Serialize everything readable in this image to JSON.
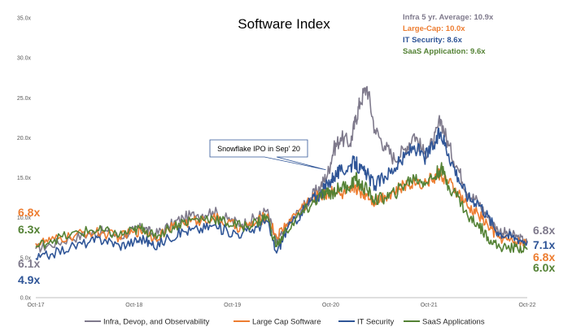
{
  "chart_data": {
    "type": "line",
    "title": "Software Index",
    "x_ticks": [
      "Oct-17",
      "Oct-18",
      "Oct-19",
      "Oct-20",
      "Oct-21",
      "Oct-22"
    ],
    "y_ticks": [
      "0.0x",
      "5.0x",
      "10.0x",
      "15.0x",
      "20.0x",
      "25.0x",
      "30.0x",
      "35.0x"
    ],
    "ylim": [
      0,
      35
    ],
    "x_range_years": [
      2017.75,
      2022.75
    ],
    "grid": false,
    "legend_position": "bottom",
    "averages": [
      {
        "text": "Infra 5 yr. Average: 10.9x",
        "color": "#7f7a8c"
      },
      {
        "text": "Large-Cap: 10.0x",
        "color": "#ed7d31"
      },
      {
        "text": "IT Security: 8.6x",
        "color": "#2f5597"
      },
      {
        "text": "SaaS Application: 9.6x",
        "color": "#548235"
      }
    ],
    "annotation": {
      "text": "Snowflake IPO in Sep' 20",
      "x": 2020.7,
      "y": 16.0
    },
    "series": [
      {
        "name": "Infra, Devop, and Observability",
        "color": "#7f7a8c",
        "start_label": "6.1x",
        "end_label": "6.8x",
        "points": [
          [
            2017.75,
            6.1
          ],
          [
            2017.9,
            6.6
          ],
          [
            2018.1,
            7.4
          ],
          [
            2018.3,
            8.0
          ],
          [
            2018.45,
            8.3
          ],
          [
            2018.6,
            7.6
          ],
          [
            2018.75,
            8.4
          ],
          [
            2018.85,
            8.8
          ],
          [
            2018.95,
            7.8
          ],
          [
            2019.1,
            8.9
          ],
          [
            2019.25,
            10.0
          ],
          [
            2019.4,
            10.4
          ],
          [
            2019.55,
            10.8
          ],
          [
            2019.7,
            9.8
          ],
          [
            2019.85,
            9.2
          ],
          [
            2020.0,
            10.0
          ],
          [
            2020.1,
            10.9
          ],
          [
            2020.2,
            6.8
          ],
          [
            2020.3,
            9.0
          ],
          [
            2020.45,
            11.0
          ],
          [
            2020.55,
            12.5
          ],
          [
            2020.65,
            14.0
          ],
          [
            2020.72,
            15.5
          ],
          [
            2020.78,
            18.5
          ],
          [
            2020.85,
            20.0
          ],
          [
            2020.95,
            19.3
          ],
          [
            2021.0,
            22.0
          ],
          [
            2021.05,
            24.5
          ],
          [
            2021.12,
            26.4
          ],
          [
            2021.2,
            21.0
          ],
          [
            2021.3,
            19.0
          ],
          [
            2021.4,
            17.3
          ],
          [
            2021.5,
            18.5
          ],
          [
            2021.6,
            20.5
          ],
          [
            2021.7,
            18.0
          ],
          [
            2021.8,
            19.5
          ],
          [
            2021.87,
            22.3
          ],
          [
            2021.95,
            19.0
          ],
          [
            2022.05,
            16.0
          ],
          [
            2022.15,
            13.0
          ],
          [
            2022.25,
            12.0
          ],
          [
            2022.35,
            10.0
          ],
          [
            2022.45,
            8.5
          ],
          [
            2022.55,
            8.0
          ],
          [
            2022.65,
            7.6
          ],
          [
            2022.75,
            6.8
          ]
        ]
      },
      {
        "name": "Large Cap Software",
        "color": "#ed7d31",
        "start_label": "6.8x",
        "end_label": "6.8x",
        "points": [
          [
            2017.75,
            6.8
          ],
          [
            2017.9,
            7.1
          ],
          [
            2018.1,
            7.6
          ],
          [
            2018.3,
            8.2
          ],
          [
            2018.45,
            8.0
          ],
          [
            2018.6,
            7.6
          ],
          [
            2018.75,
            8.2
          ],
          [
            2018.85,
            8.5
          ],
          [
            2018.95,
            7.5
          ],
          [
            2019.1,
            8.5
          ],
          [
            2019.25,
            9.4
          ],
          [
            2019.4,
            9.6
          ],
          [
            2019.55,
            10.0
          ],
          [
            2019.7,
            9.3
          ],
          [
            2019.85,
            8.7
          ],
          [
            2020.0,
            9.4
          ],
          [
            2020.1,
            10.3
          ],
          [
            2020.2,
            7.6
          ],
          [
            2020.3,
            9.2
          ],
          [
            2020.45,
            11.2
          ],
          [
            2020.55,
            12.3
          ],
          [
            2020.65,
            12.8
          ],
          [
            2020.72,
            13.0
          ],
          [
            2020.78,
            13.6
          ],
          [
            2020.85,
            12.8
          ],
          [
            2020.95,
            13.2
          ],
          [
            2021.0,
            14.0
          ],
          [
            2021.05,
            13.2
          ],
          [
            2021.12,
            13.0
          ],
          [
            2021.2,
            12.0
          ],
          [
            2021.3,
            12.8
          ],
          [
            2021.4,
            13.2
          ],
          [
            2021.5,
            14.0
          ],
          [
            2021.6,
            14.6
          ],
          [
            2021.7,
            14.3
          ],
          [
            2021.8,
            15.0
          ],
          [
            2021.87,
            15.5
          ],
          [
            2021.95,
            14.3
          ],
          [
            2022.05,
            13.0
          ],
          [
            2022.15,
            11.2
          ],
          [
            2022.25,
            10.5
          ],
          [
            2022.35,
            9.0
          ],
          [
            2022.45,
            7.6
          ],
          [
            2022.55,
            7.2
          ],
          [
            2022.65,
            7.0
          ],
          [
            2022.75,
            6.8
          ]
        ]
      },
      {
        "name": "IT Security",
        "color": "#2f5597",
        "start_label": "4.9x",
        "end_label": "7.1x",
        "points": [
          [
            2017.75,
            4.9
          ],
          [
            2017.9,
            5.4
          ],
          [
            2018.1,
            6.3
          ],
          [
            2018.3,
            7.0
          ],
          [
            2018.45,
            7.3
          ],
          [
            2018.6,
            6.5
          ],
          [
            2018.75,
            7.0
          ],
          [
            2018.85,
            7.4
          ],
          [
            2018.95,
            6.3
          ],
          [
            2019.1,
            7.5
          ],
          [
            2019.25,
            8.3
          ],
          [
            2019.4,
            8.5
          ],
          [
            2019.55,
            9.0
          ],
          [
            2019.7,
            8.3
          ],
          [
            2019.85,
            8.0
          ],
          [
            2020.0,
            8.8
          ],
          [
            2020.1,
            9.6
          ],
          [
            2020.2,
            5.6
          ],
          [
            2020.3,
            8.4
          ],
          [
            2020.45,
            10.6
          ],
          [
            2020.55,
            12.2
          ],
          [
            2020.65,
            13.0
          ],
          [
            2020.72,
            14.2
          ],
          [
            2020.78,
            15.2
          ],
          [
            2020.85,
            15.8
          ],
          [
            2020.95,
            16.5
          ],
          [
            2021.0,
            17.0
          ],
          [
            2021.05,
            16.0
          ],
          [
            2021.12,
            15.4
          ],
          [
            2021.2,
            14.0
          ],
          [
            2021.3,
            15.2
          ],
          [
            2021.4,
            16.2
          ],
          [
            2021.5,
            17.5
          ],
          [
            2021.6,
            19.0
          ],
          [
            2021.7,
            17.5
          ],
          [
            2021.8,
            19.0
          ],
          [
            2021.87,
            20.7
          ],
          [
            2021.95,
            18.0
          ],
          [
            2022.05,
            15.0
          ],
          [
            2022.15,
            12.5
          ],
          [
            2022.25,
            12.0
          ],
          [
            2022.35,
            10.2
          ],
          [
            2022.45,
            8.2
          ],
          [
            2022.55,
            7.8
          ],
          [
            2022.65,
            7.4
          ],
          [
            2022.75,
            7.1
          ]
        ]
      },
      {
        "name": "SaaS Applications",
        "color": "#548235",
        "start_label": "6.3x",
        "end_label": "6.0x",
        "points": [
          [
            2017.75,
            6.3
          ],
          [
            2017.9,
            7.2
          ],
          [
            2018.1,
            7.8
          ],
          [
            2018.3,
            8.4
          ],
          [
            2018.45,
            8.3
          ],
          [
            2018.6,
            7.8
          ],
          [
            2018.75,
            8.4
          ],
          [
            2018.85,
            8.7
          ],
          [
            2018.95,
            7.6
          ],
          [
            2019.1,
            8.6
          ],
          [
            2019.25,
            9.5
          ],
          [
            2019.4,
            9.8
          ],
          [
            2019.55,
            10.0
          ],
          [
            2019.7,
            9.3
          ],
          [
            2019.85,
            8.9
          ],
          [
            2020.0,
            9.4
          ],
          [
            2020.1,
            10.2
          ],
          [
            2020.2,
            6.4
          ],
          [
            2020.3,
            8.4
          ],
          [
            2020.45,
            10.5
          ],
          [
            2020.55,
            11.5
          ],
          [
            2020.65,
            12.8
          ],
          [
            2020.72,
            13.0
          ],
          [
            2020.78,
            13.2
          ],
          [
            2020.85,
            13.8
          ],
          [
            2020.95,
            14.0
          ],
          [
            2021.0,
            15.0
          ],
          [
            2021.05,
            14.0
          ],
          [
            2021.12,
            13.5
          ],
          [
            2021.2,
            12.2
          ],
          [
            2021.3,
            12.5
          ],
          [
            2021.4,
            13.0
          ],
          [
            2021.5,
            14.2
          ],
          [
            2021.6,
            15.0
          ],
          [
            2021.7,
            14.5
          ],
          [
            2021.8,
            15.0
          ],
          [
            2021.87,
            16.2
          ],
          [
            2021.95,
            14.0
          ],
          [
            2022.05,
            12.6
          ],
          [
            2022.15,
            10.0
          ],
          [
            2022.25,
            9.2
          ],
          [
            2022.35,
            7.6
          ],
          [
            2022.45,
            6.4
          ],
          [
            2022.55,
            6.2
          ],
          [
            2022.65,
            6.3
          ],
          [
            2022.75,
            6.0
          ]
        ]
      }
    ]
  }
}
